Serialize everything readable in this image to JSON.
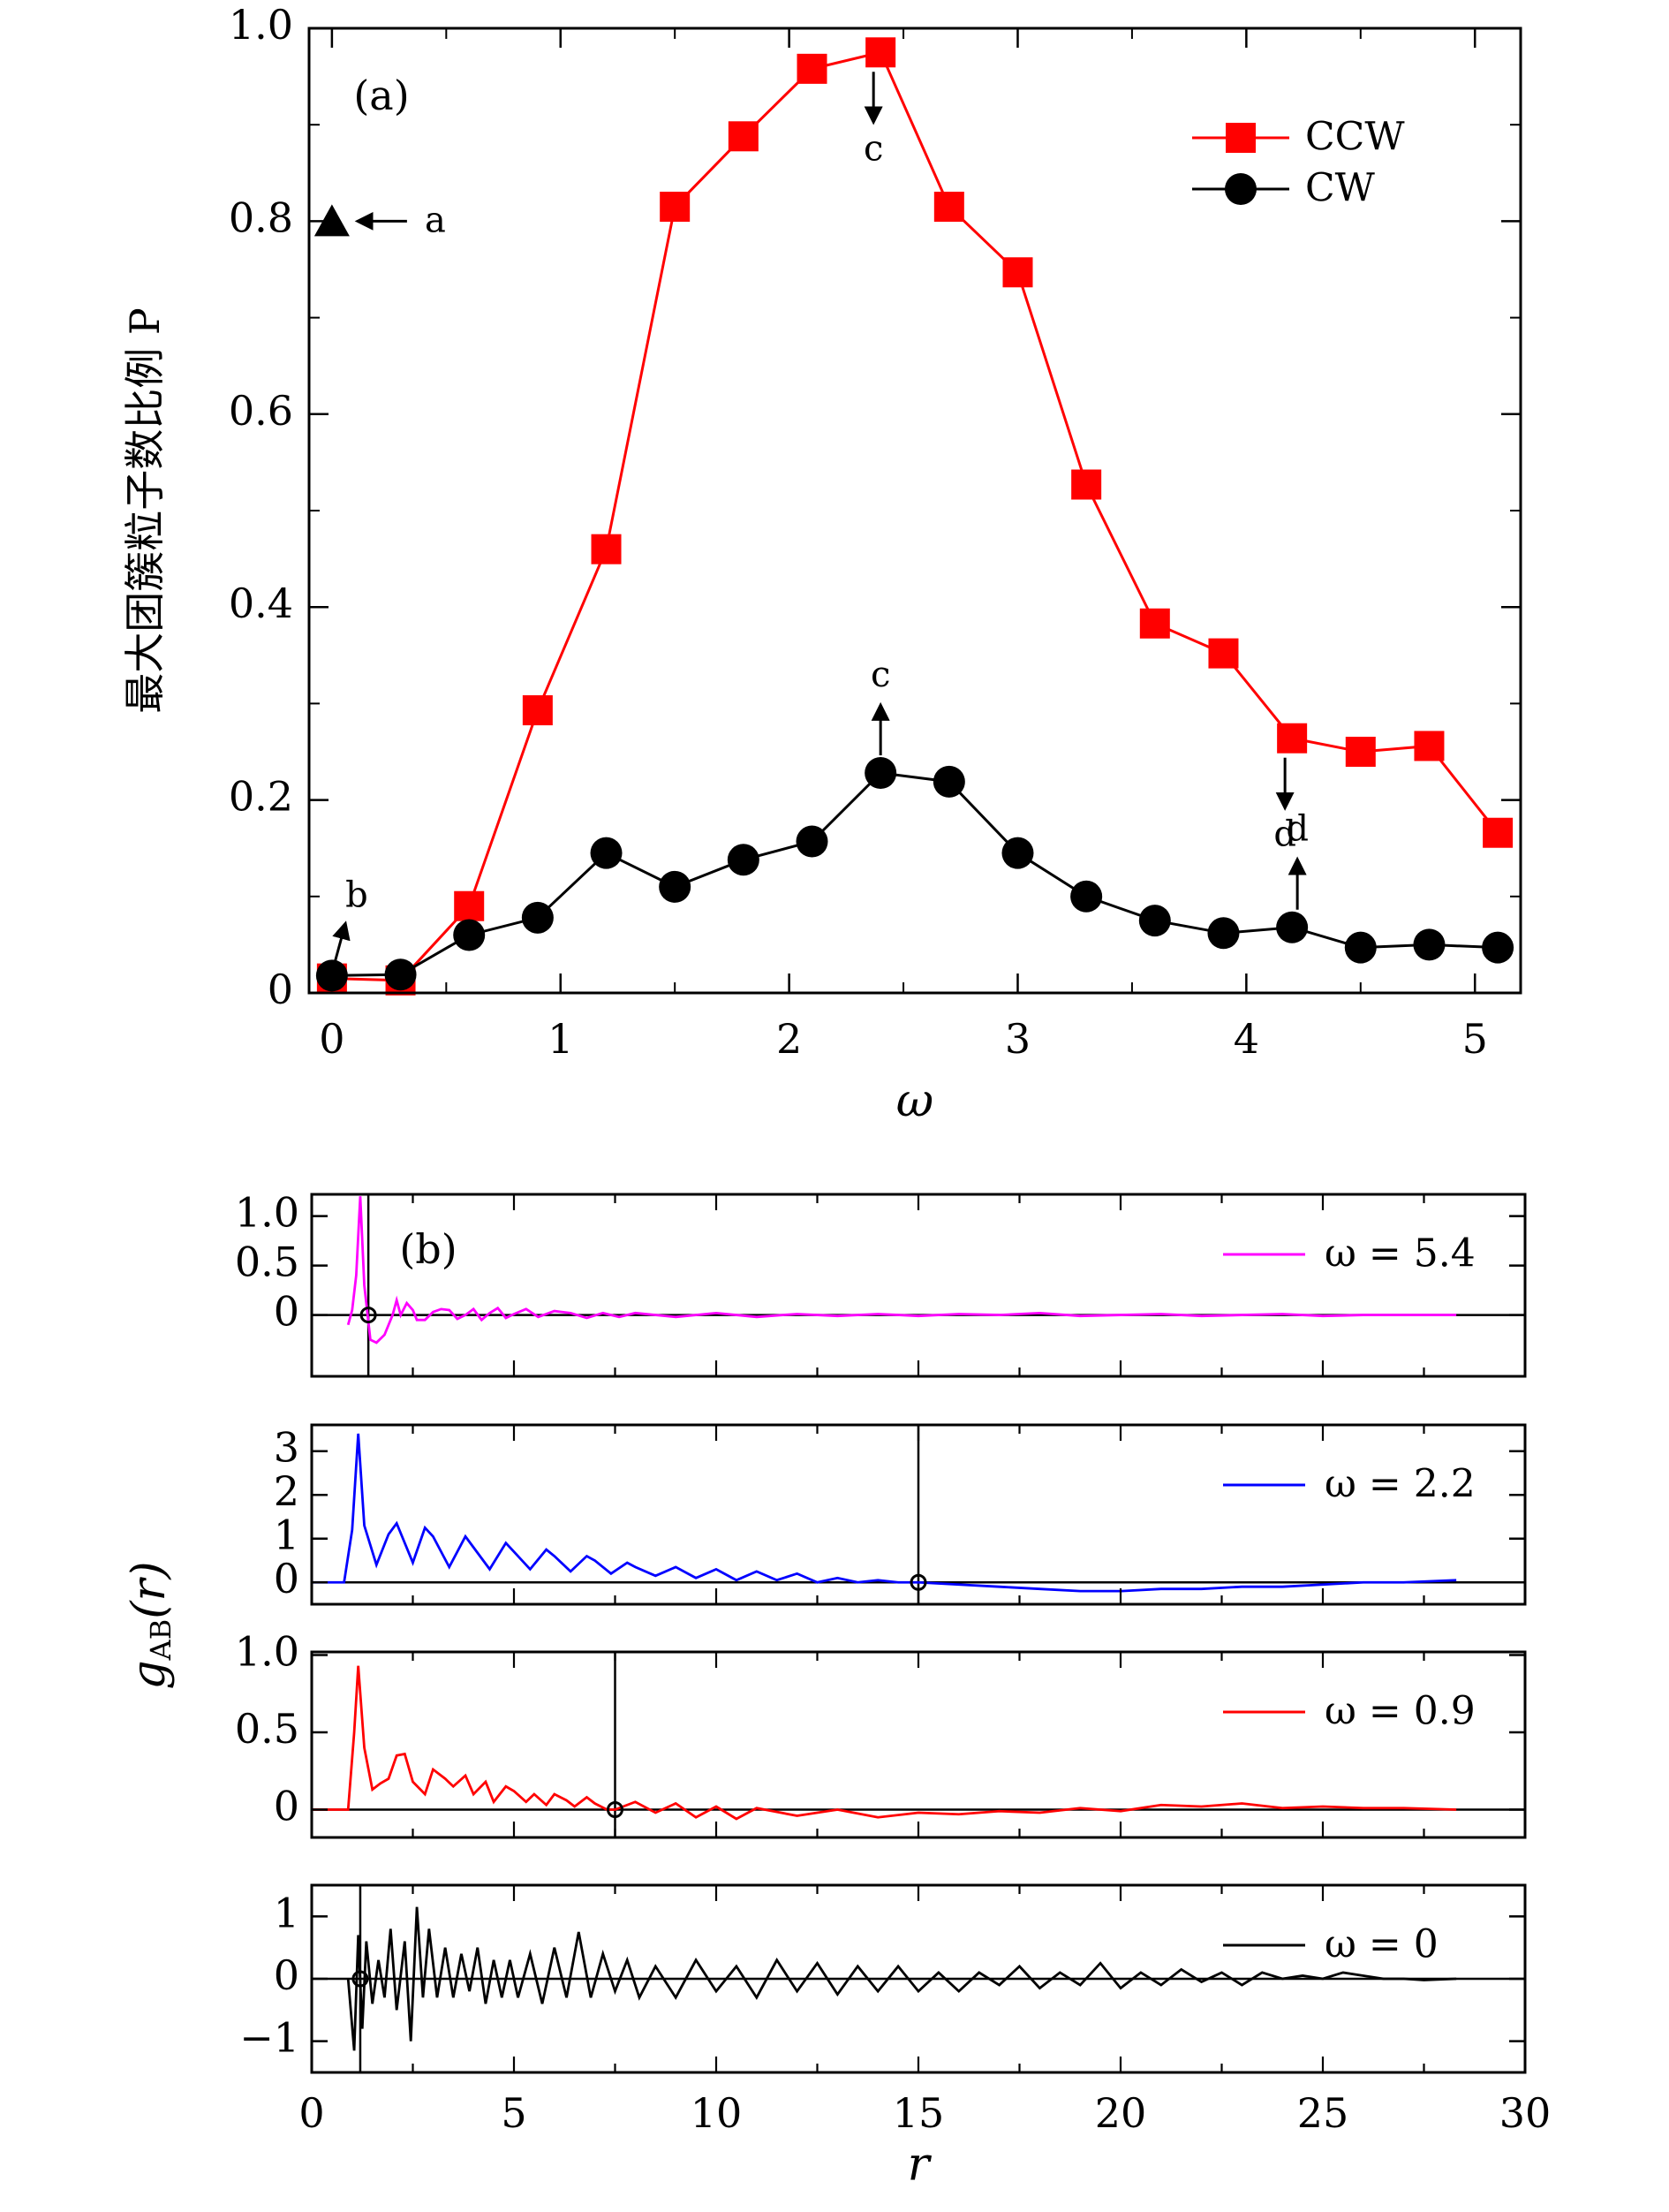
{
  "chart_data": [
    {
      "type": "line",
      "panel_label": "(a)",
      "xlabel": "ω",
      "ylabel": "最大团簇粒子数比例 P",
      "xlim": [
        -0.1,
        5.2
      ],
      "ylim": [
        0,
        1.0
      ],
      "x_ticks": [
        0,
        1,
        2,
        3,
        4,
        5
      ],
      "x_tick_labels": [
        "0",
        "1",
        "2",
        "3",
        "4",
        "5"
      ],
      "y_ticks": [
        0,
        0.2,
        0.4,
        0.6,
        0.8,
        1.0
      ],
      "y_tick_labels": [
        "0",
        "0.2",
        "0.4",
        "0.6",
        "0.8",
        "1.0"
      ],
      "legend_position": "top-right",
      "series": [
        {
          "name": "CCW",
          "color": "#ff0000",
          "marker": "square",
          "x": [
            0,
            0.3,
            0.6,
            0.9,
            1.2,
            1.5,
            1.8,
            2.1,
            2.4,
            2.7,
            3.0,
            3.3,
            3.6,
            3.9,
            4.2,
            4.5,
            4.8,
            5.1
          ],
          "y": [
            0.015,
            0.013,
            0.09,
            0.293,
            0.46,
            0.815,
            0.888,
            0.958,
            0.975,
            0.815,
            0.747,
            0.527,
            0.383,
            0.352,
            0.264,
            0.25,
            0.256,
            0.166
          ]
        },
        {
          "name": "CW",
          "color": "#000000",
          "marker": "circle",
          "x": [
            0,
            0.3,
            0.6,
            0.9,
            1.2,
            1.5,
            1.8,
            2.1,
            2.4,
            2.7,
            3.0,
            3.3,
            3.6,
            3.9,
            4.2,
            4.5,
            4.8,
            5.1
          ],
          "y": [
            0.018,
            0.019,
            0.06,
            0.078,
            0.145,
            0.11,
            0.138,
            0.157,
            0.228,
            0.219,
            0.145,
            0.1,
            0.075,
            0.062,
            0.068,
            0.047,
            0.05,
            0.047
          ]
        }
      ],
      "extra_points": [
        {
          "x": 0,
          "y": 0.8,
          "marker": "triangle",
          "color": "#000000"
        }
      ],
      "annotations": [
        {
          "text": "a",
          "x": 0,
          "y": 0.8,
          "arrow": "left"
        },
        {
          "text": "b",
          "x": 0,
          "y": 0.018,
          "arrow": "up-right"
        },
        {
          "text": "c",
          "x": 2.4,
          "y": 0.975,
          "arrow": "down"
        },
        {
          "text": "c",
          "x": 2.4,
          "y": 0.228,
          "arrow": "up"
        },
        {
          "text": "d",
          "x": 4.2,
          "y": 0.264,
          "arrow": "down"
        },
        {
          "text": "d",
          "x": 4.2,
          "y": 0.068,
          "arrow": "up"
        }
      ]
    },
    {
      "type": "line",
      "panel_label": "(b)",
      "xlabel": "r",
      "ylabel": "g",
      "ylabel_subscript": "AB",
      "ylabel_suffix": "(r)",
      "xlim": [
        0,
        30
      ],
      "x_ticks": [
        0,
        5,
        10,
        15,
        20,
        25,
        30
      ],
      "x_tick_labels": [
        "0",
        "5",
        "10",
        "15",
        "20",
        "25",
        "30"
      ],
      "subplots": [
        {
          "name": "ω = 5.4",
          "color": "#ff00ff",
          "ylim": [
            -0.62,
            1.22
          ],
          "y_ticks": [
            0,
            0.5,
            1.0
          ],
          "y_tick_labels": [
            "0",
            "0.5",
            "1.0"
          ],
          "vline_x": 1.4,
          "marker_x": 1.4,
          "x": [
            0.9,
            1.0,
            1.1,
            1.2,
            1.3,
            1.45,
            1.6,
            1.8,
            2.0,
            2.1,
            2.2,
            2.35,
            2.5,
            2.6,
            2.8,
            3.0,
            3.2,
            3.4,
            3.6,
            3.8,
            4.0,
            4.2,
            4.4,
            4.6,
            4.8,
            5.0,
            5.3,
            5.6,
            6.0,
            6.4,
            6.8,
            7.2,
            7.6,
            8.0,
            9.0,
            10.0,
            11.0,
            12.0,
            13.0,
            14.0,
            15.0,
            16.0,
            17.0,
            18.0,
            19.0,
            20.0,
            21.0,
            22.0,
            23.0,
            24.0,
            25.0,
            26.0,
            27.0,
            28.3
          ],
          "y": [
            -0.1,
            0.05,
            0.4,
            1.2,
            0.3,
            -0.25,
            -0.28,
            -0.2,
            0.0,
            0.15,
            0.0,
            0.12,
            0.05,
            -0.05,
            -0.05,
            0.03,
            0.06,
            0.05,
            -0.04,
            0.0,
            0.06,
            -0.05,
            0.02,
            0.07,
            -0.03,
            0.01,
            0.06,
            -0.02,
            0.04,
            0.02,
            -0.03,
            0.02,
            -0.02,
            0.02,
            -0.02,
            0.02,
            -0.02,
            0.01,
            -0.01,
            0.01,
            -0.01,
            0.01,
            0.0,
            0.02,
            -0.01,
            0.0,
            0.01,
            -0.01,
            0.0,
            0.01,
            -0.01,
            0.0,
            0.0,
            0.0
          ]
        },
        {
          "name": "ω = 2.2",
          "color": "#0000ff",
          "ylim": [
            -0.5,
            3.6
          ],
          "y_ticks": [
            0,
            1,
            2,
            3
          ],
          "y_tick_labels": [
            "0",
            "1",
            "2",
            "3"
          ],
          "vline_x": 15,
          "marker_x": 15,
          "x": [
            0.0,
            0.8,
            1.0,
            1.15,
            1.3,
            1.6,
            1.9,
            2.1,
            2.5,
            2.8,
            3.0,
            3.4,
            3.8,
            4.0,
            4.4,
            4.8,
            5.0,
            5.4,
            5.8,
            6.0,
            6.4,
            6.8,
            7.0,
            7.4,
            7.8,
            8.0,
            8.5,
            9.0,
            9.5,
            10.0,
            10.5,
            11.0,
            11.5,
            12.0,
            12.5,
            13.0,
            13.5,
            14.0,
            14.5,
            15.0,
            16.0,
            17.0,
            18.0,
            19.0,
            20.0,
            21.0,
            22.0,
            23.0,
            24.0,
            25.0,
            26.0,
            27.0,
            28.3
          ],
          "y": [
            0.0,
            0.0,
            1.2,
            3.4,
            1.3,
            0.4,
            1.1,
            1.35,
            0.45,
            1.25,
            1.05,
            0.35,
            1.05,
            0.8,
            0.3,
            0.9,
            0.7,
            0.3,
            0.75,
            0.6,
            0.25,
            0.6,
            0.5,
            0.2,
            0.45,
            0.35,
            0.15,
            0.35,
            0.1,
            0.3,
            0.05,
            0.25,
            0.05,
            0.2,
            0.0,
            0.1,
            0.0,
            0.05,
            0.0,
            0.0,
            -0.05,
            -0.1,
            -0.15,
            -0.2,
            -0.2,
            -0.15,
            -0.15,
            -0.1,
            -0.1,
            -0.05,
            0.0,
            0.0,
            0.05
          ]
        },
        {
          "name": "ω = 0.9",
          "color": "#ff0000",
          "ylim": [
            -0.18,
            1.02
          ],
          "y_ticks": [
            0,
            0.5,
            1.0
          ],
          "y_tick_labels": [
            "0",
            "0.5",
            "1.0"
          ],
          "vline_x": 7.5,
          "marker_x": 7.5,
          "x": [
            0.0,
            0.9,
            1.05,
            1.15,
            1.3,
            1.5,
            1.7,
            1.9,
            2.1,
            2.3,
            2.5,
            2.8,
            3.0,
            3.3,
            3.5,
            3.8,
            4.0,
            4.3,
            4.5,
            4.8,
            5.0,
            5.3,
            5.5,
            5.8,
            6.0,
            6.3,
            6.5,
            6.8,
            7.0,
            7.3,
            7.5,
            8.0,
            8.5,
            9.0,
            9.5,
            10.0,
            10.5,
            11.0,
            12.0,
            13.0,
            14.0,
            15.0,
            16.0,
            17.0,
            18.0,
            19.0,
            20.0,
            21.0,
            22.0,
            23.0,
            24.0,
            25.0,
            26.0,
            27.0,
            28.3
          ],
          "y": [
            0.0,
            0.0,
            0.5,
            0.93,
            0.4,
            0.13,
            0.17,
            0.2,
            0.35,
            0.36,
            0.18,
            0.1,
            0.26,
            0.2,
            0.15,
            0.22,
            0.1,
            0.18,
            0.05,
            0.15,
            0.12,
            0.05,
            0.1,
            0.03,
            0.1,
            0.06,
            0.02,
            0.08,
            0.04,
            0.0,
            0.0,
            0.05,
            -0.02,
            0.04,
            -0.05,
            0.02,
            -0.06,
            0.01,
            -0.04,
            0.0,
            -0.05,
            -0.02,
            -0.03,
            -0.01,
            -0.02,
            0.01,
            -0.01,
            0.03,
            0.02,
            0.04,
            0.01,
            0.02,
            0.01,
            0.01,
            0.0
          ]
        },
        {
          "name": "ω = 0",
          "color": "#000000",
          "ylim": [
            -1.5,
            1.5
          ],
          "y_ticks": [
            -1,
            0,
            1
          ],
          "y_tick_labels": [
            "−1",
            "0",
            "1"
          ],
          "vline_x": 1.2,
          "marker_x": 1.2,
          "x": [
            0.9,
            1.05,
            1.15,
            1.25,
            1.35,
            1.5,
            1.65,
            1.8,
            1.95,
            2.1,
            2.3,
            2.45,
            2.6,
            2.75,
            2.9,
            3.1,
            3.3,
            3.5,
            3.7,
            3.9,
            4.1,
            4.3,
            4.5,
            4.7,
            4.9,
            5.1,
            5.4,
            5.7,
            6.0,
            6.3,
            6.6,
            6.9,
            7.2,
            7.5,
            7.8,
            8.1,
            8.5,
            9.0,
            9.5,
            10.0,
            10.5,
            11.0,
            11.5,
            12.0,
            12.5,
            13.0,
            13.5,
            14.0,
            14.5,
            15.0,
            15.5,
            16.0,
            16.5,
            17.0,
            17.5,
            18.0,
            18.5,
            19.0,
            19.5,
            20.0,
            20.5,
            21.0,
            21.5,
            22.0,
            22.5,
            23.0,
            23.5,
            24.0,
            24.5,
            25.0,
            25.5,
            26.0,
            26.5,
            27.0,
            27.5,
            28.3
          ],
          "y": [
            0.0,
            -1.15,
            0.7,
            -0.8,
            0.6,
            -0.4,
            0.3,
            -0.3,
            0.8,
            -0.5,
            0.6,
            -1.0,
            1.15,
            -0.3,
            0.8,
            -0.3,
            0.5,
            -0.3,
            0.4,
            -0.2,
            0.5,
            -0.4,
            0.3,
            -0.3,
            0.3,
            -0.3,
            0.4,
            -0.4,
            0.5,
            -0.3,
            0.75,
            -0.3,
            0.4,
            -0.2,
            0.3,
            -0.3,
            0.2,
            -0.3,
            0.3,
            -0.2,
            0.2,
            -0.3,
            0.3,
            -0.2,
            0.25,
            -0.25,
            0.2,
            -0.2,
            0.2,
            -0.2,
            0.1,
            -0.2,
            0.1,
            -0.1,
            0.2,
            -0.15,
            0.1,
            -0.1,
            0.25,
            -0.15,
            0.1,
            -0.1,
            0.15,
            -0.05,
            0.1,
            -0.1,
            0.1,
            0.0,
            0.05,
            0.0,
            0.1,
            0.05,
            0.0,
            0.0,
            -0.02,
            0.0
          ]
        }
      ]
    }
  ]
}
